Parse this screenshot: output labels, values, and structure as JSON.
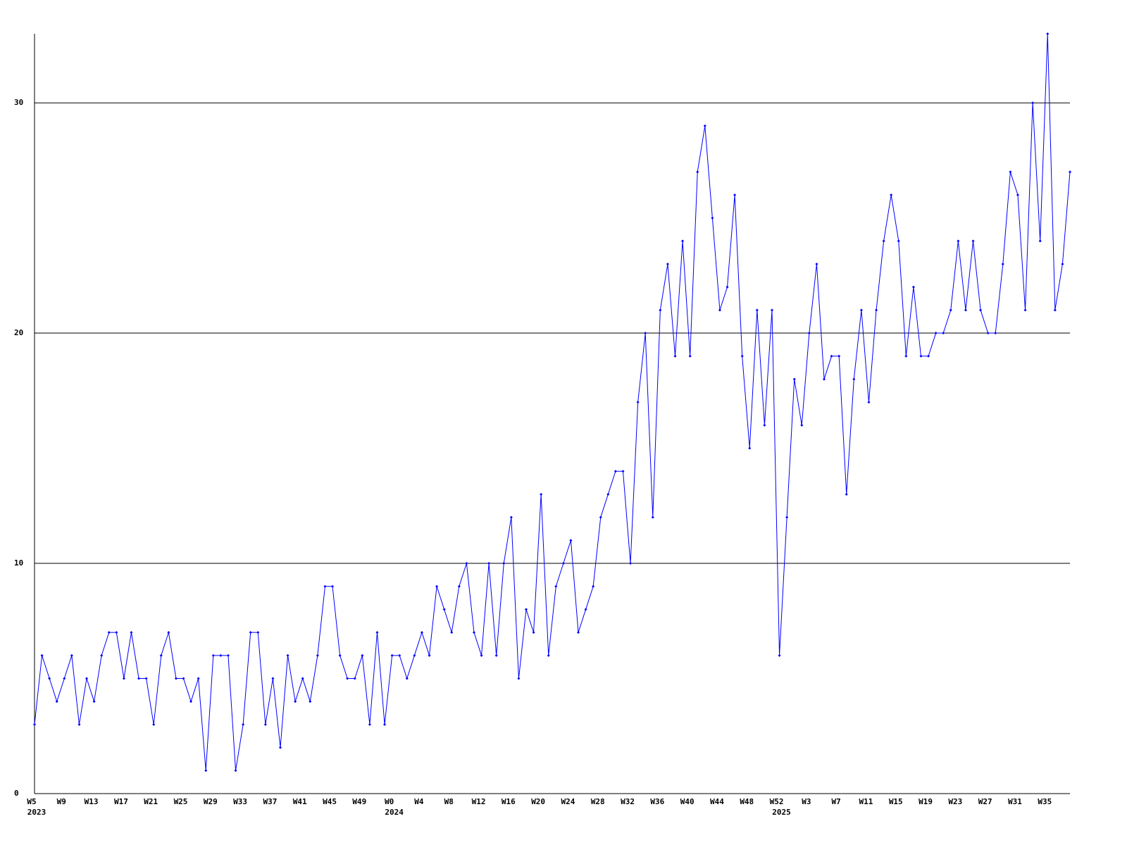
{
  "chart_data": {
    "type": "line",
    "categories": [
      "W5",
      null,
      null,
      null,
      "W9",
      null,
      null,
      null,
      "W13",
      null,
      null,
      null,
      "W17",
      null,
      null,
      null,
      "W21",
      null,
      null,
      null,
      "W25",
      null,
      null,
      null,
      "W29",
      null,
      null,
      null,
      "W33",
      null,
      null,
      null,
      "W37",
      null,
      null,
      null,
      "W41",
      null,
      null,
      null,
      "W45",
      null,
      null,
      null,
      "W49",
      null,
      null,
      null,
      "W0",
      null,
      null,
      null,
      "W4",
      null,
      null,
      null,
      "W8",
      null,
      null,
      null,
      "W12",
      null,
      null,
      null,
      "W16",
      null,
      null,
      null,
      "W20",
      null,
      null,
      null,
      "W24",
      null,
      null,
      null,
      "W28",
      null,
      null,
      null,
      "W32",
      null,
      null,
      null,
      "W36",
      null,
      null,
      null,
      "W40",
      null,
      null,
      null,
      "W44",
      null,
      null,
      null,
      "W48",
      null,
      null,
      null,
      "W52",
      null,
      null,
      null,
      "W3",
      null,
      null,
      null,
      "W7",
      null,
      null,
      null,
      "W11",
      null,
      null,
      null,
      "W15",
      null,
      null,
      null,
      "W19",
      null,
      null,
      null,
      "W23",
      null,
      null,
      null,
      "W27",
      null,
      null,
      null,
      "W31",
      null,
      null,
      null,
      "W35",
      null,
      null,
      null
    ],
    "year_labels": {
      "W5": "2023",
      "W0": "2024",
      "W52": "2025"
    },
    "series": [
      {
        "color": "#0000ff",
        "values": [
          3,
          6,
          5,
          4,
          5,
          6,
          3,
          5,
          4,
          6,
          7,
          7,
          5,
          7,
          5,
          5,
          3,
          6,
          7,
          5,
          5,
          4,
          5,
          1,
          6,
          6,
          6,
          1,
          3,
          7,
          7,
          3,
          5,
          2,
          6,
          4,
          5,
          4,
          6,
          9,
          9,
          6,
          5,
          5,
          6,
          3,
          7,
          3,
          6,
          6,
          5,
          6,
          7,
          6,
          9,
          8,
          7,
          9,
          10,
          7,
          6,
          10,
          6,
          10,
          12,
          5,
          8,
          7,
          13,
          6,
          9,
          10,
          11,
          7,
          8,
          9,
          12,
          13,
          14,
          14,
          10,
          17,
          20,
          12,
          21,
          23,
          19,
          24,
          19,
          27,
          29,
          25,
          21,
          22,
          26,
          19,
          15,
          21,
          16,
          21,
          6,
          12,
          18,
          16,
          20,
          23,
          18,
          19,
          19,
          13,
          18,
          21,
          17,
          21,
          24,
          26,
          24,
          19,
          22,
          19,
          19,
          20,
          20,
          21,
          24,
          21,
          24,
          21,
          20,
          20,
          23,
          27,
          26,
          21,
          30,
          24,
          33,
          21,
          23,
          27
        ]
      }
    ],
    "ylim": [
      0,
      33
    ],
    "yticks": [
      0,
      10,
      20,
      30
    ],
    "grid": true
  }
}
